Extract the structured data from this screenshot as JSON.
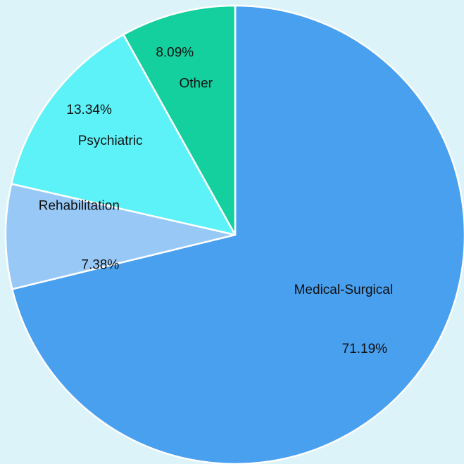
{
  "chart_data": {
    "type": "pie",
    "categories": [
      "Medical-Surgical",
      "Rehabilitation",
      "Psychiatric",
      "Other"
    ],
    "values": [
      71.19,
      7.38,
      13.34,
      8.09
    ],
    "value_labels": [
      "71.19%",
      "7.38%",
      "13.34%",
      "8.09%"
    ],
    "colors": [
      "#48a0ef",
      "#98c9f6",
      "#5df2f7",
      "#13d09e"
    ]
  }
}
